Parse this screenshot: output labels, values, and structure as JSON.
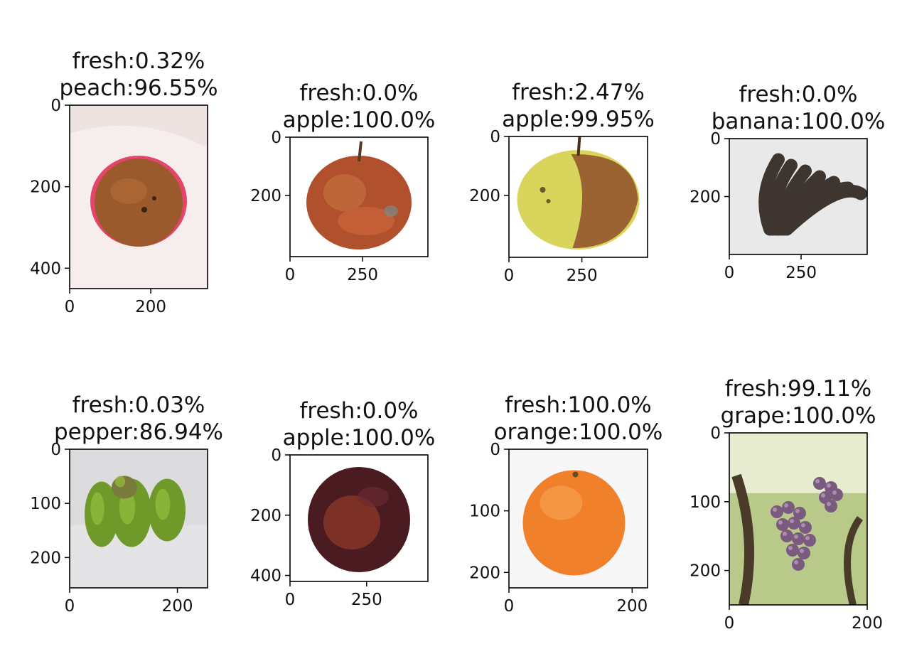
{
  "panels": [
    {
      "title1": "fresh:0.32%",
      "title2": "peach:96.55%",
      "xticks": [
        {
          "v": 0,
          "label": "0"
        },
        {
          "v": 200,
          "label": "200"
        }
      ],
      "yticks": [
        {
          "v": 0,
          "label": "0"
        },
        {
          "v": 200,
          "label": "200"
        },
        {
          "v": 400,
          "label": "400"
        }
      ],
      "img_w": 340,
      "img_h": 450,
      "fruit": "peach",
      "state": "rotten"
    },
    {
      "title1": "fresh:0.0%",
      "title2": "apple:100.0%",
      "xticks": [
        {
          "v": 0,
          "label": "0"
        },
        {
          "v": 250,
          "label": "250"
        }
      ],
      "yticks": [
        {
          "v": 0,
          "label": "0"
        },
        {
          "v": 200,
          "label": "200"
        }
      ],
      "img_w": 475,
      "img_h": 410,
      "fruit": "apple",
      "state": "rotten"
    },
    {
      "title1": "fresh:2.47%",
      "title2": "apple:99.95%",
      "xticks": [
        {
          "v": 0,
          "label": "0"
        },
        {
          "v": 250,
          "label": "250"
        }
      ],
      "yticks": [
        {
          "v": 0,
          "label": "0"
        },
        {
          "v": 200,
          "label": "200"
        }
      ],
      "img_w": 475,
      "img_h": 410,
      "fruit": "apple",
      "state": "half-rotten"
    },
    {
      "title1": "fresh:0.0%",
      "title2": "banana:100.0%",
      "xticks": [
        {
          "v": 0,
          "label": "0"
        },
        {
          "v": 250,
          "label": "250"
        }
      ],
      "yticks": [
        {
          "v": 0,
          "label": "0"
        },
        {
          "v": 200,
          "label": "200"
        }
      ],
      "img_w": 480,
      "img_h": 400,
      "fruit": "banana",
      "state": "rotten"
    },
    {
      "title1": "fresh:0.03%",
      "title2": "pepper:86.94%",
      "xticks": [
        {
          "v": 0,
          "label": "0"
        },
        {
          "v": 200,
          "label": "200"
        }
      ],
      "yticks": [
        {
          "v": 0,
          "label": "0"
        },
        {
          "v": 100,
          "label": "100"
        },
        {
          "v": 200,
          "label": "200"
        }
      ],
      "img_w": 256,
      "img_h": 256,
      "fruit": "pepper",
      "state": "rotten"
    },
    {
      "title1": "fresh:0.0%",
      "title2": "apple:100.0%",
      "xticks": [
        {
          "v": 0,
          "label": "0"
        },
        {
          "v": 250,
          "label": "250"
        }
      ],
      "yticks": [
        {
          "v": 0,
          "label": "0"
        },
        {
          "v": 200,
          "label": "200"
        },
        {
          "v": 400,
          "label": "400"
        }
      ],
      "img_w": 450,
      "img_h": 420,
      "fruit": "apple",
      "state": "rotten-dark"
    },
    {
      "title1": "fresh:100.0%",
      "title2": "orange:100.0%",
      "xticks": [
        {
          "v": 0,
          "label": "0"
        },
        {
          "v": 200,
          "label": "200"
        }
      ],
      "yticks": [
        {
          "v": 0,
          "label": "0"
        },
        {
          "v": 100,
          "label": "100"
        },
        {
          "v": 200,
          "label": "200"
        }
      ],
      "img_w": 225,
      "img_h": 225,
      "fruit": "orange",
      "state": "fresh"
    },
    {
      "title1": "fresh:99.11%",
      "title2": "grape:100.0%",
      "xticks": [
        {
          "v": 0,
          "label": "0"
        },
        {
          "v": 200,
          "label": "200"
        }
      ],
      "yticks": [
        {
          "v": 0,
          "label": "0"
        },
        {
          "v": 100,
          "label": "100"
        },
        {
          "v": 200,
          "label": "200"
        }
      ],
      "img_w": 200,
      "img_h": 250,
      "fruit": "grape",
      "state": "rotten"
    }
  ]
}
